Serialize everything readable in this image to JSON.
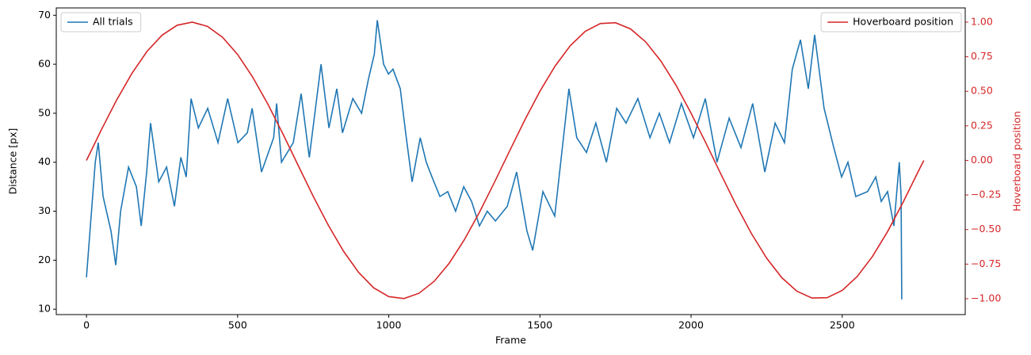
{
  "chart_data": {
    "type": "line",
    "xlabel": "Frame",
    "ylabel": "Distance [px]",
    "y2label": "Hoverboard position",
    "xlim": [
      -100,
      2907
    ],
    "xticks": [
      0,
      500,
      1000,
      1500,
      2000,
      2500
    ],
    "ylim": [
      8.9,
      71.5
    ],
    "yticks": [
      10,
      20,
      30,
      40,
      50,
      60,
      70
    ],
    "y2lim": [
      -1.115,
      1.103
    ],
    "y2ticks": [
      {
        "value": -1,
        "label": "−1.00"
      },
      {
        "value": -0.75,
        "label": "−0.75"
      },
      {
        "value": -0.5,
        "label": "−0.50"
      },
      {
        "value": -0.25,
        "label": "−0.25"
      },
      {
        "value": 0,
        "label": "0.00"
      },
      {
        "value": 0.25,
        "label": "0.25"
      },
      {
        "value": 0.5,
        "label": "0.50"
      },
      {
        "value": 0.75,
        "label": "0.75"
      },
      {
        "value": 1,
        "label": "1.00"
      }
    ],
    "y2color": "#d62728",
    "series": [
      {
        "name": "All trials",
        "color": "#1f77b4",
        "legend": "upper left",
        "x": [
          0,
          29,
          39,
          55,
          81,
          97,
          113,
          139,
          165,
          181,
          199,
          212,
          239,
          265,
          291,
          312,
          330,
          346,
          370,
          401,
          435,
          467,
          501,
          532,
          548,
          579,
          619,
          629,
          645,
          684,
          710,
          737,
          776,
          802,
          828,
          847,
          881,
          910,
          933,
          952,
          962,
          983,
          999,
          1014,
          1038,
          1056,
          1077,
          1104,
          1124,
          1143,
          1169,
          1195,
          1221,
          1248,
          1274,
          1300,
          1326,
          1353,
          1392,
          1423,
          1457,
          1476,
          1510,
          1549,
          1596,
          1622,
          1654,
          1685,
          1720,
          1754,
          1785,
          1824,
          1864,
          1895,
          1929,
          1968,
          2008,
          2047,
          2086,
          2126,
          2165,
          2204,
          2244,
          2278,
          2309,
          2335,
          2362,
          2388,
          2409,
          2440,
          2472,
          2498,
          2519,
          2545,
          2584,
          2611,
          2629,
          2650,
          2671,
          2689,
          2695,
          2697
        ],
        "values": [
          16.5,
          40,
          44,
          33,
          26,
          19,
          30,
          39,
          35,
          27,
          38,
          48,
          36,
          39,
          31,
          41,
          37,
          53,
          47,
          51,
          44,
          53,
          44,
          46,
          51,
          38,
          45,
          52,
          40,
          44,
          54,
          41,
          60,
          47,
          55,
          46,
          53,
          50,
          57,
          62,
          69,
          60,
          58,
          59,
          55,
          46,
          36,
          45,
          40,
          37,
          33,
          34,
          30,
          35,
          32,
          27,
          30,
          28,
          31,
          38,
          26,
          22,
          34,
          29,
          55,
          45,
          42,
          48,
          40,
          51,
          48,
          53,
          45,
          50,
          44,
          52,
          45,
          53,
          40,
          49,
          43,
          52,
          38,
          48,
          44,
          59,
          65,
          55,
          66,
          51,
          43,
          37,
          40,
          33,
          34,
          37,
          32,
          34,
          27,
          40,
          33,
          12
        ]
      },
      {
        "name": "Hoverboard position",
        "color": "#d62728",
        "axis": "y2",
        "legend": "upper right",
        "x": [
          0,
          50,
          100,
          150,
          200,
          250,
          300,
          350,
          400,
          450,
          500,
          550,
          600,
          650,
          700,
          750,
          800,
          850,
          900,
          950,
          1000,
          1050,
          1100,
          1150,
          1200,
          1250,
          1300,
          1350,
          1400,
          1450,
          1500,
          1550,
          1600,
          1650,
          1700,
          1750,
          1800,
          1850,
          1900,
          1950,
          2000,
          2050,
          2100,
          2150,
          2200,
          2250,
          2300,
          2350,
          2400,
          2450,
          2500,
          2550,
          2600,
          2650,
          2700,
          2750,
          2770
        ],
        "values": [
          0,
          0.225,
          0.438,
          0.629,
          0.788,
          0.906,
          0.978,
          1.0,
          0.97,
          0.891,
          0.766,
          0.602,
          0.407,
          0.191,
          -0.035,
          -0.259,
          -0.469,
          -0.656,
          -0.809,
          -0.921,
          -0.985,
          -0.999,
          -0.961,
          -0.875,
          -0.743,
          -0.574,
          -0.375,
          -0.156,
          0.07,
          0.292,
          0.5,
          0.682,
          0.829,
          0.934,
          0.99,
          0.996,
          0.951,
          0.857,
          0.719,
          0.545,
          0.342,
          0.122,
          -0.105,
          -0.326,
          -0.53,
          -0.707,
          -0.848,
          -0.946,
          -0.995,
          -0.993,
          -0.94,
          -0.839,
          -0.695,
          -0.515,
          -0.309,
          -0.087,
          0
        ]
      }
    ]
  }
}
